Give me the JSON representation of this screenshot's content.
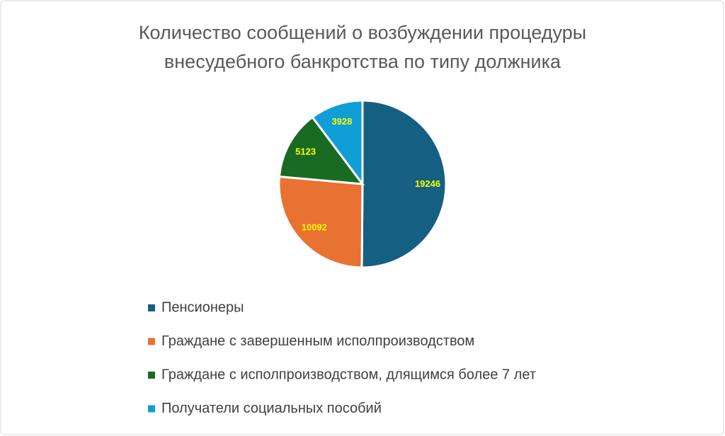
{
  "chart_data": {
    "type": "pie",
    "title": [
      "Количество сообщений о возбуждении процедуры",
      "внесудебного банкротства по типу должника"
    ],
    "categories": [
      "Пенсионеры",
      "Граждане с завершенным исполпроизводством",
      "Граждане с исполпроизводством, длящимся более 7 лет",
      "Получатели социальных пособий"
    ],
    "values": [
      19246,
      10092,
      5123,
      3928
    ],
    "colors": [
      "#156082",
      "#e97132",
      "#196b24",
      "#0f9ed5"
    ],
    "label_color": "#ffff00",
    "legend": "bottom"
  }
}
